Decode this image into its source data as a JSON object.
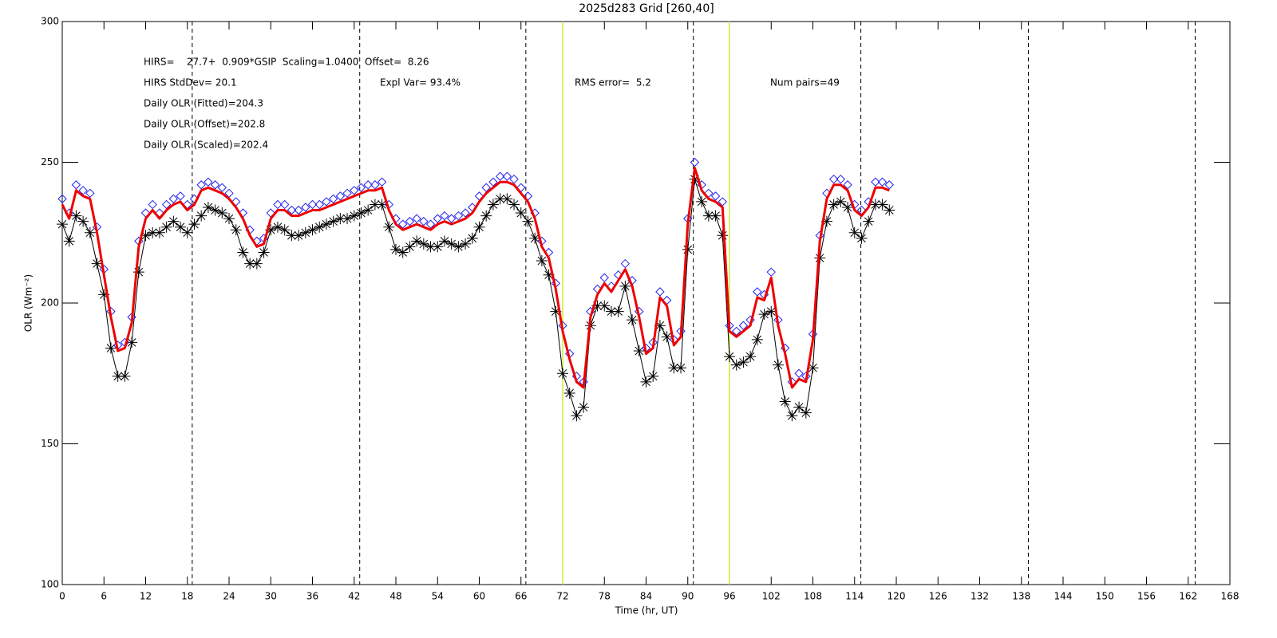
{
  "chart_data": {
    "type": "line",
    "title": "2025d283 Grid [260,40]",
    "x_label": "Time (hr, UT)",
    "y_label": "OLR (Wm⁻²)",
    "annotations": {
      "fit": "HIRS=    27.7+  0.909*GSIP  Scaling=1.0400  Offset=  8.26",
      "stddev": "HIRS StdDev= 20.1",
      "explvar": "Expl Var= 93.4%",
      "rms": "RMS error=  5.2",
      "npairs": "Num pairs=49",
      "fitted": "Daily OLR (Fitted)=204.3",
      "offset": "Daily OLR (Offset)=202.8",
      "scaled": "Daily OLR (Scaled)=202.4"
    },
    "xlim": [
      0,
      168
    ],
    "ylim": [
      100,
      300
    ],
    "xticks": [
      0,
      6,
      12,
      18,
      24,
      30,
      36,
      42,
      48,
      54,
      60,
      66,
      72,
      78,
      84,
      90,
      96,
      102,
      108,
      114,
      120,
      126,
      132,
      138,
      144,
      150,
      156,
      162,
      168
    ],
    "yticks": [
      100,
      150,
      200,
      250,
      300
    ],
    "dashed_lines": [
      18.7,
      42.8,
      66.7,
      90.8,
      114.9,
      139,
      163
    ],
    "dashed_color": "#000000",
    "highlight_lines": [
      72,
      96
    ],
    "highlight_color": "#ccee33",
    "x": [
      0,
      1,
      2,
      3,
      4,
      5,
      6,
      7,
      8,
      9,
      10,
      11,
      12,
      13,
      14,
      15,
      16,
      17,
      18,
      19,
      20,
      21,
      22,
      23,
      24,
      25,
      26,
      27,
      28,
      29,
      30,
      31,
      32,
      33,
      34,
      35,
      36,
      37,
      38,
      39,
      40,
      41,
      42,
      43,
      44,
      45,
      46,
      47,
      48,
      49,
      50,
      51,
      52,
      53,
      54,
      55,
      56,
      57,
      58,
      59,
      60,
      61,
      62,
      63,
      64,
      65,
      66,
      67,
      68,
      69,
      70,
      71,
      72,
      73,
      74,
      75,
      76,
      77,
      78,
      79,
      80,
      81,
      82,
      83,
      84,
      85,
      86,
      87,
      88,
      89,
      90,
      91,
      92,
      93,
      94,
      95,
      96,
      97,
      98,
      99,
      100,
      101,
      102,
      103,
      104,
      105,
      106,
      107,
      108,
      109,
      110,
      111,
      112,
      113,
      114,
      115,
      116,
      117,
      118,
      119
    ],
    "series": [
      {
        "color": "#000000",
        "style": "asterisk-line",
        "values": [
          228,
          222,
          231,
          229,
          225,
          214,
          203,
          184,
          174,
          174,
          186,
          211,
          224,
          225,
          225,
          227,
          229,
          227,
          225,
          228,
          231,
          234,
          233,
          232,
          230,
          226,
          218,
          214,
          214,
          218,
          226,
          227,
          226,
          224,
          224,
          225,
          226,
          227,
          228,
          229,
          230,
          230,
          231,
          232,
          233,
          235,
          235,
          227,
          219,
          218,
          220,
          222,
          221,
          220,
          220,
          222,
          221,
          220,
          221,
          223,
          227,
          231,
          235,
          237,
          237,
          235,
          232,
          229,
          223,
          215,
          210,
          197,
          175,
          168,
          160,
          163,
          192,
          199,
          199,
          197,
          197,
          206,
          194,
          183,
          172,
          174,
          192,
          188,
          177,
          177,
          219,
          244,
          236,
          231,
          231,
          224,
          181,
          178,
          179,
          181,
          187,
          196,
          197,
          178,
          165,
          160,
          163,
          161,
          177,
          216,
          229,
          235,
          236,
          234,
          225,
          223,
          229,
          235,
          235,
          233
        ]
      },
      {
        "color": "#2222ee",
        "style": "diamond",
        "values": [
          237,
          232,
          242,
          240,
          239,
          227,
          212,
          197,
          185,
          186,
          195,
          222,
          232,
          235,
          232,
          235,
          237,
          238,
          235,
          237,
          242,
          243,
          242,
          241,
          239,
          236,
          232,
          226,
          222,
          223,
          232,
          235,
          235,
          233,
          233,
          234,
          235,
          235,
          236,
          237,
          238,
          239,
          240,
          241,
          242,
          242,
          243,
          235,
          230,
          228,
          229,
          230,
          229,
          228,
          230,
          231,
          230,
          231,
          232,
          234,
          238,
          241,
          243,
          245,
          245,
          244,
          241,
          238,
          232,
          222,
          218,
          207,
          192,
          182,
          174,
          172,
          197,
          205,
          209,
          206,
          210,
          214,
          208,
          197,
          184,
          186,
          204,
          201,
          187,
          190,
          230,
          250,
          242,
          239,
          238,
          236,
          192,
          190,
          192,
          194,
          204,
          203,
          211,
          194,
          184,
          172,
          175,
          174,
          189,
          224,
          239,
          244,
          244,
          242,
          235,
          233,
          236,
          243,
          243,
          242
        ]
      },
      {
        "color": "#ee0000",
        "style": "thick-line",
        "values": [
          235,
          230,
          240,
          238,
          237,
          225,
          210,
          195,
          183,
          184,
          193,
          220,
          230,
          233,
          230,
          233,
          235,
          236,
          233,
          235,
          240,
          241,
          240,
          239,
          237,
          234,
          230,
          224,
          220,
          221,
          230,
          233,
          233,
          231,
          231,
          232,
          233,
          233,
          234,
          235,
          236,
          237,
          238,
          239,
          240,
          240,
          241,
          233,
          228,
          226,
          227,
          228,
          227,
          226,
          228,
          229,
          228,
          229,
          230,
          232,
          236,
          239,
          241,
          243,
          243,
          242,
          239,
          236,
          230,
          220,
          216,
          205,
          190,
          180,
          172,
          170,
          195,
          203,
          207,
          204,
          208,
          212,
          206,
          195,
          182,
          184,
          202,
          199,
          185,
          188,
          228,
          248,
          240,
          237,
          236,
          234,
          190,
          188,
          190,
          192,
          202,
          201,
          209,
          192,
          182,
          170,
          173,
          172,
          187,
          222,
          237,
          242,
          242,
          240,
          233,
          231,
          234,
          241,
          241,
          240
        ]
      }
    ]
  }
}
